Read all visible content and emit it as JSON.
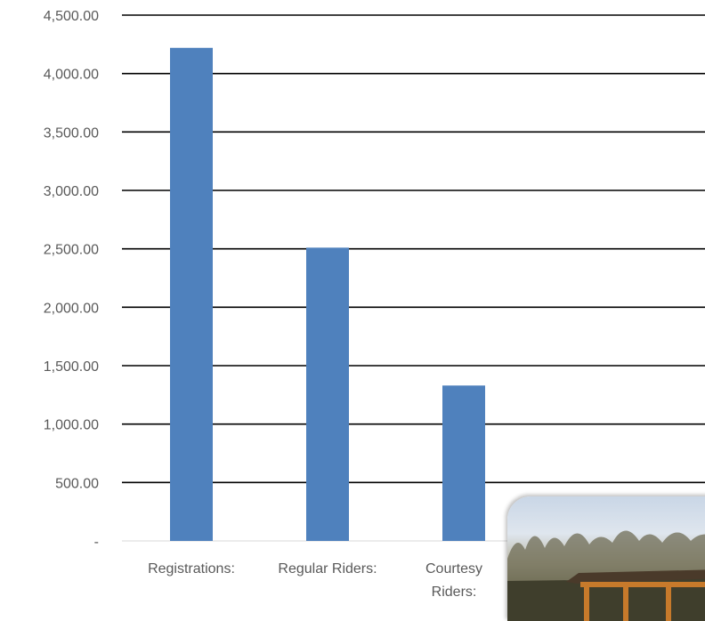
{
  "chart_data": {
    "type": "bar",
    "categories": [
      "Registrations:",
      "Regular Riders:",
      "Courtesy Riders:"
    ],
    "category_label_lines": [
      [
        "Registrations:"
      ],
      [
        "Regular Riders:"
      ],
      [
        "Courtesy",
        "Riders:"
      ]
    ],
    "values": [
      4220,
      2510,
      1330
    ],
    "ylim": [
      0,
      4500
    ],
    "yticks": [
      0,
      500,
      1000,
      1500,
      2000,
      2500,
      3000,
      3500,
      4000,
      4500
    ],
    "ytick_labels": [
      "-",
      "500.00",
      "1,000.00",
      "1,500.00",
      "2,000.00",
      "2,500.00",
      "3,000.00",
      "3,500.00",
      "4,000.00",
      "4,500.00"
    ],
    "grid": true,
    "bar_color": "#4f81bd",
    "title": "",
    "xlabel": "",
    "ylabel": ""
  },
  "photo": {
    "icon": "park-shelter-photo"
  }
}
